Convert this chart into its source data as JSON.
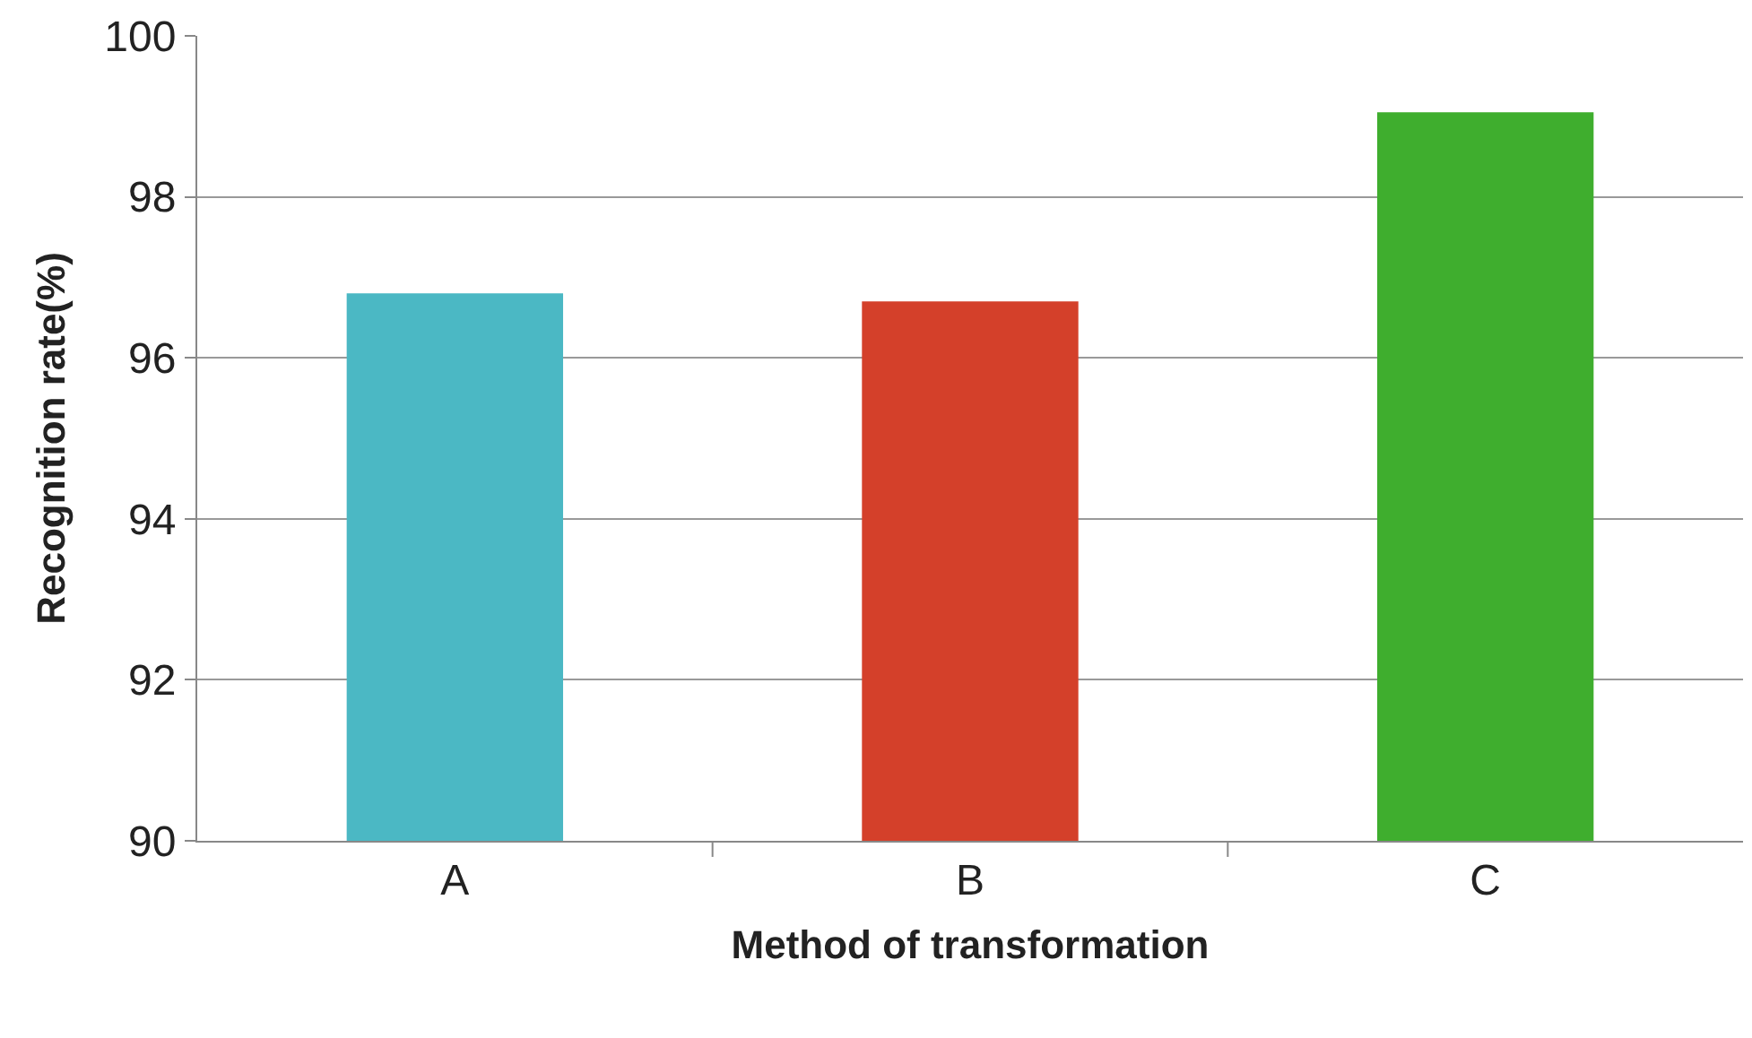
{
  "chart_data": {
    "type": "bar",
    "xlabel": "Method of transformation",
    "ylabel": "Recognition rate(%)",
    "categories": [
      "A",
      "B",
      "C"
    ],
    "values": [
      96.8,
      96.7,
      99.05
    ],
    "colors": [
      "#4bb8c4",
      "#d4402a",
      "#3fae2e"
    ],
    "ylim": [
      90,
      100
    ],
    "yticks": [
      90,
      92,
      94,
      96,
      98,
      100
    ],
    "grid": "y"
  }
}
